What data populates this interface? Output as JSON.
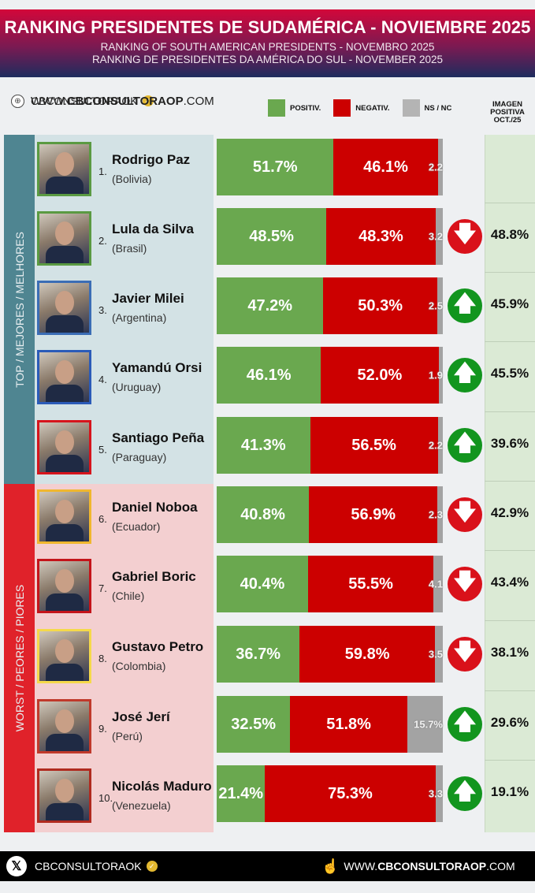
{
  "header": {
    "title": "RANKING PRESIDENTES DE SUDAMÉRICA - NOVIEMBRE 2025",
    "subtitle_pt": "RANKING OF SOUTH AMERICAN PRESIDENTS -   NOVEMBRO 2025",
    "subtitle_en": "RANKING DE PRESIDENTES DA AMÉRICA DO SUL - NOVEMBER 2025"
  },
  "social": {
    "handle": "CBCONSULTORAOK",
    "website_prefix": "WWW.",
    "website_bold": "CBCONSULTORAOP",
    "website_suffix": ".COM"
  },
  "legend": {
    "positive": "POSITIV.",
    "negative": "NEGATIV.",
    "nsnc": "NS / NC"
  },
  "oct_header": [
    "IMAGEN",
    "POSITIVA",
    "OCT./25"
  ],
  "sections": {
    "top": "TOP / MEJORES / MELHORES",
    "worst": "WORST / PEORES / PIORES"
  },
  "colors": {
    "positive": "#6aa84f",
    "negative": "#cc0000",
    "nsnc": "#a3a3a3",
    "top_band": "#4f8591",
    "worst_band": "#e0222a",
    "top_panel": "#d3e2e5",
    "worst_panel": "#f3cfd0",
    "arrow_up": "#12951e",
    "arrow_down": "#d9111a"
  },
  "rows": [
    {
      "rank": "1.",
      "name": "Rodrigo Paz",
      "country": "(Bolivia)",
      "pos": "51.7%",
      "neg": "46.1%",
      "ns": "2.2",
      "trend": "",
      "oct": "",
      "border": "#5a9a42"
    },
    {
      "rank": "2.",
      "name": "Lula da Silva",
      "country": "(Brasil)",
      "pos": "48.5%",
      "neg": "48.3%",
      "ns": "3.2",
      "trend": "down",
      "oct": "48.8%",
      "border": "#5a9a42"
    },
    {
      "rank": "3.",
      "name": "Javier Milei",
      "country": "(Argentina)",
      "pos": "47.2%",
      "neg": "50.3%",
      "ns": "2.5",
      "trend": "up",
      "oct": "45.9%",
      "border": "#3b6db5"
    },
    {
      "rank": "4.",
      "name": "Yamandú Orsi",
      "country": "(Uruguay)",
      "pos": "46.1%",
      "neg": "52.0%",
      "ns": "1.9",
      "trend": "up",
      "oct": "45.5%",
      "border": "#2b5bb8"
    },
    {
      "rank": "5.",
      "name": "Santiago Peña",
      "country": "(Paraguay)",
      "pos": "41.3%",
      "neg": "56.5%",
      "ns": "2.2",
      "trend": "up",
      "oct": "39.6%",
      "border": "#d6141c"
    },
    {
      "rank": "6.",
      "name": "Daniel Noboa",
      "country": "(Ecuador)",
      "pos": "40.8%",
      "neg": "56.9%",
      "ns": "2.3",
      "trend": "down",
      "oct": "42.9%",
      "border": "#f0b72e"
    },
    {
      "rank": "7.",
      "name": "Gabriel Boric",
      "country": "(Chile)",
      "pos": "40.4%",
      "neg": "55.5%",
      "ns": "4.1",
      "trend": "down",
      "oct": "43.4%",
      "border": "#c4141a"
    },
    {
      "rank": "8.",
      "name": "Gustavo Petro",
      "country": "(Colombia)",
      "pos": "36.7%",
      "neg": "59.8%",
      "ns": "3.5",
      "trend": "down",
      "oct": "38.1%",
      "border": "#f5d94a"
    },
    {
      "rank": "9.",
      "name": "José Jerí",
      "country": "(Perú)",
      "pos": "32.5%",
      "neg": "51.8%",
      "ns": "15.7%",
      "trend": "up",
      "oct": "29.6%",
      "border": "#c0392b"
    },
    {
      "rank": "10.",
      "name": "Nicolás Maduro",
      "country": "(Venezuela)",
      "pos": "21.4%",
      "neg": "75.3%",
      "ns": "3.3",
      "trend": "up",
      "oct": "19.1%",
      "border": "#b02a1f"
    }
  ],
  "footer": {
    "handle": "CBCONSULTORAOK",
    "website_prefix": "WWW.",
    "website_bold": "CBCONSULTORAOP",
    "website_suffix": ".COM"
  },
  "chart_data": {
    "type": "bar",
    "stacked": true,
    "orientation": "horizontal",
    "title": "RANKING PRESIDENTES DE SUDAMÉRICA - NOVIEMBRE 2025",
    "categories": [
      "Rodrigo Paz (Bolivia)",
      "Lula da Silva (Brasil)",
      "Javier Milei (Argentina)",
      "Yamandú Orsi (Uruguay)",
      "Santiago Peña (Paraguay)",
      "Daniel Noboa (Ecuador)",
      "Gabriel Boric (Chile)",
      "Gustavo Petro (Colombia)",
      "José Jerí (Perú)",
      "Nicolás Maduro (Venezuela)"
    ],
    "series": [
      {
        "name": "POSITIV.",
        "values": [
          51.7,
          48.5,
          47.2,
          46.1,
          41.3,
          40.8,
          40.4,
          36.7,
          32.5,
          21.4
        ]
      },
      {
        "name": "NEGATIV.",
        "values": [
          46.1,
          48.3,
          50.3,
          52.0,
          56.5,
          56.9,
          55.5,
          59.8,
          51.8,
          75.3
        ]
      },
      {
        "name": "NS / NC",
        "values": [
          2.2,
          3.2,
          2.5,
          1.9,
          2.2,
          2.3,
          4.1,
          3.5,
          15.7,
          3.3
        ]
      }
    ],
    "comparison": {
      "name": "IMAGEN POSITIVA OCT./25",
      "values": [
        null,
        48.8,
        45.9,
        45.5,
        39.6,
        42.9,
        43.4,
        38.1,
        29.6,
        19.1
      ]
    },
    "trend": [
      null,
      "down",
      "up",
      "up",
      "up",
      "down",
      "down",
      "down",
      "up",
      "up"
    ],
    "xlim": [
      0,
      100
    ],
    "legend_position": "top"
  }
}
